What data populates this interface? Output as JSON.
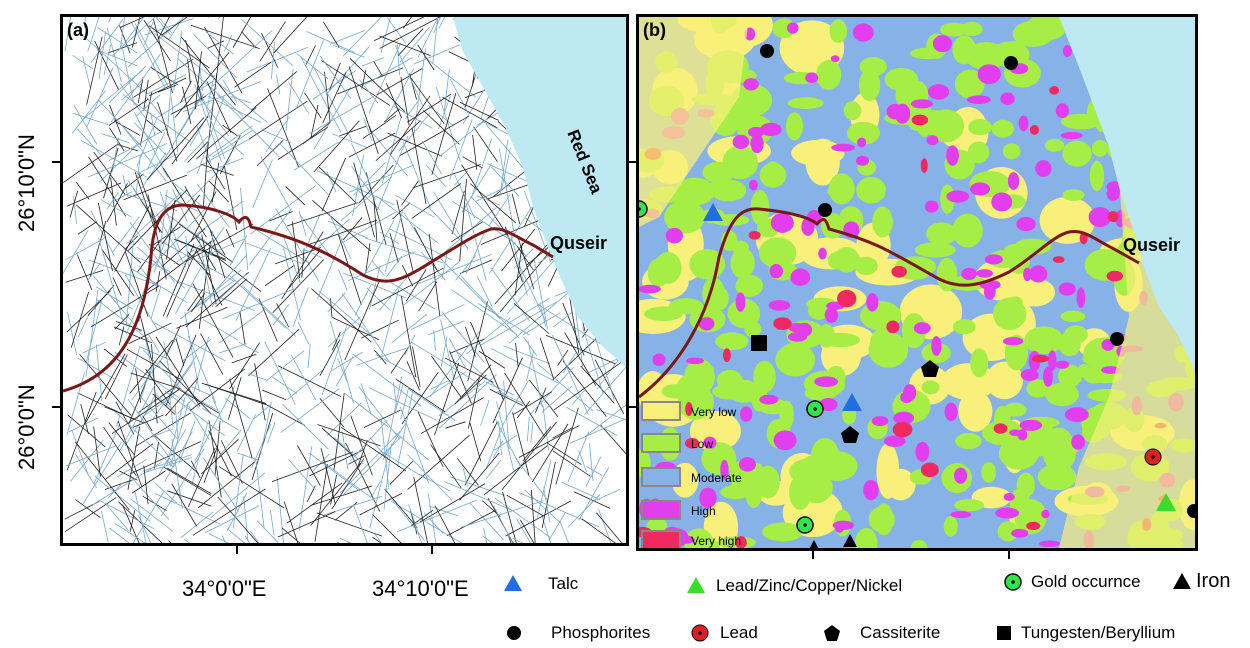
{
  "panel_a": {
    "label": "(a)",
    "sea_label": "Red Sea",
    "town_label": "Quseir"
  },
  "panel_b": {
    "label": "(b)",
    "town_label": "Quseir",
    "legend": [
      {
        "label": "Very low",
        "color": "#f8f07a"
      },
      {
        "label": "Low",
        "color": "#a6ee46"
      },
      {
        "label": "Moderate",
        "color": "#86b2e8"
      },
      {
        "label": "High",
        "color": "#e23ef0"
      },
      {
        "label": "Very high",
        "color": "#f02a60"
      }
    ]
  },
  "axes": {
    "y_labels": [
      "26°10'0\"N",
      "26°0'0\"N"
    ],
    "x_labels": [
      "34°0'0\"E",
      "34°10'0\"E"
    ]
  },
  "symbols_legend": [
    {
      "label": "Talc",
      "icon": "blue-triangle-icon",
      "color": "#1f6fe0"
    },
    {
      "label": "Lead/Zinc/Copper/Nickel",
      "icon": "green-triangle-icon",
      "color": "#3ddc2a"
    },
    {
      "label": "Gold occurnce",
      "icon": "gold-circle-icon",
      "color": "#2ee84a"
    },
    {
      "label": "Iron",
      "icon": "black-triangle-icon",
      "color": "#000000"
    },
    {
      "label": "Phosphorites",
      "icon": "black-circle-icon",
      "color": "#000000"
    },
    {
      "label": "Lead",
      "icon": "red-circle-icon",
      "color": "#e02020"
    },
    {
      "label": "Cassiterite",
      "icon": "pentagon-icon",
      "color": "#000000"
    },
    {
      "label": "Tungesten/Beryllium",
      "icon": "black-square-icon",
      "color": "#000000"
    }
  ],
  "colors": {
    "sea": "#bde9f3",
    "road": "#7a1818",
    "lineament_blue": "#7aa9cc",
    "lineament_black": "#222222"
  }
}
